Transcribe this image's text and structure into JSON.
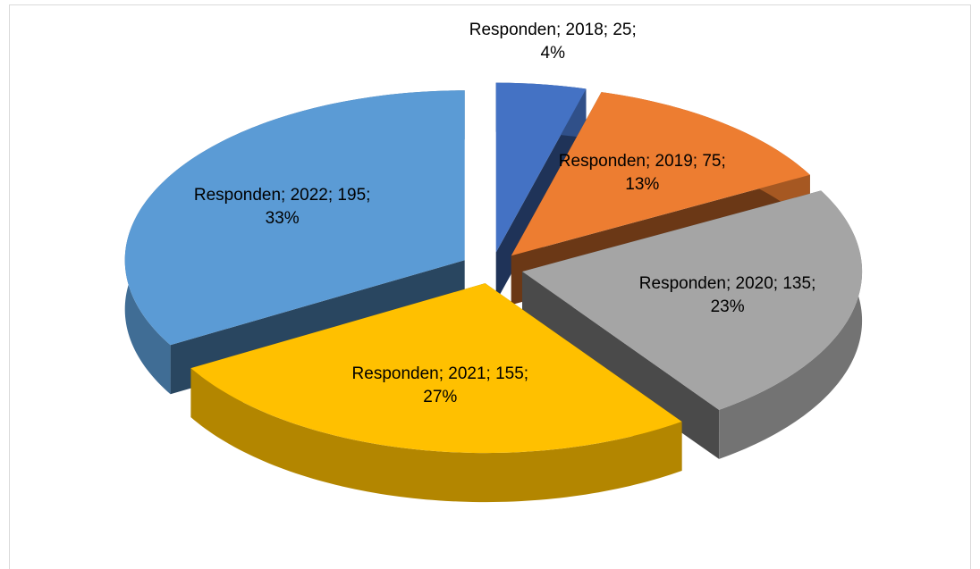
{
  "chart_data": {
    "type": "pie3d",
    "series_name": "Responden",
    "categories": [
      "2018",
      "2019",
      "2020",
      "2021",
      "2022"
    ],
    "values": [
      25,
      75,
      135,
      155,
      195
    ],
    "value_labels": [
      "Responden; 2018; 25; 4%",
      "Responden; 2019; 75; 13%",
      "Responden; 2020; 135; 23%",
      "Responden; 2021; 155; 27%",
      "Responden; 2022; 195; 33%"
    ],
    "colors": [
      "#4472c4",
      "#ed7d31",
      "#a5a5a5",
      "#ffc000",
      "#5b9bd5"
    ]
  }
}
